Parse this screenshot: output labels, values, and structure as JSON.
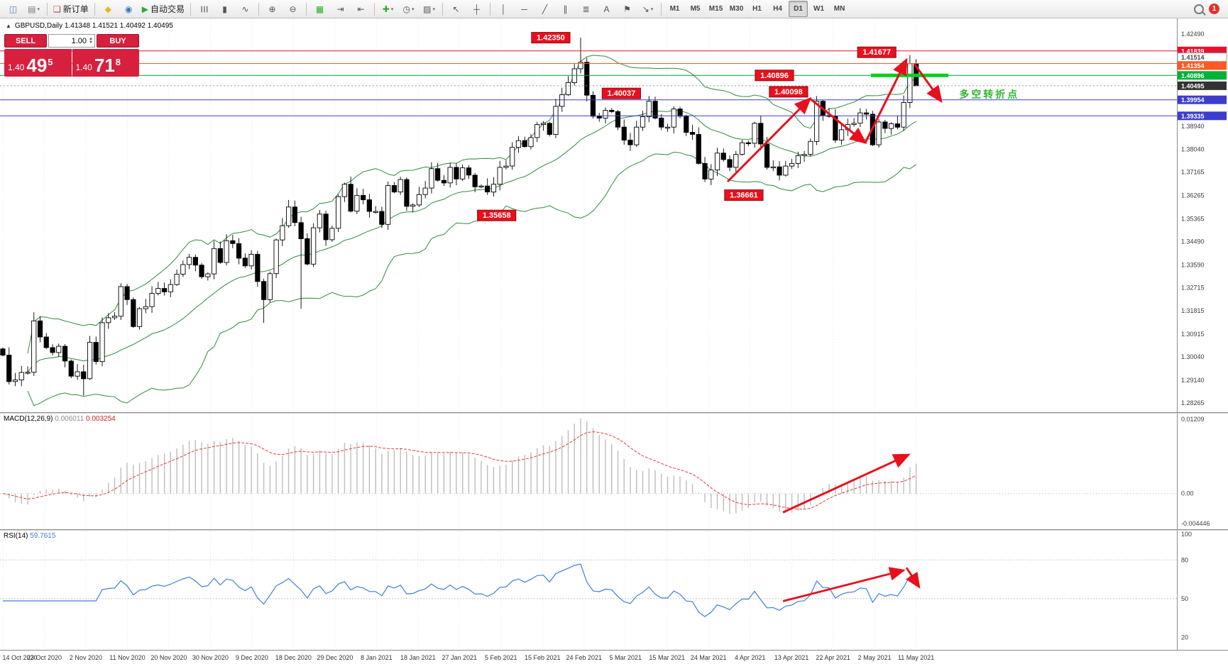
{
  "toolbar": {
    "notification_count": "1",
    "groups": [
      [
        {
          "name": "new-chart-button",
          "glyph": "◫",
          "color": "#4a7ebb"
        },
        {
          "name": "profiles-button",
          "glyph": "▤",
          "color": "#7a7a7a",
          "dd": true
        }
      ],
      [
        {
          "name": "new-order-button",
          "glyph": "❏",
          "color": "#c03b3b",
          "label": "新订单"
        }
      ],
      [
        {
          "name": "metaeditor-button",
          "glyph": "◆",
          "color": "#e8b41a"
        },
        {
          "name": "terminal-button",
          "glyph": "◉",
          "color": "#3a76c4"
        },
        {
          "name": "autotrading-button",
          "glyph": "▶",
          "color": "#2faa2f",
          "label": "自动交易"
        }
      ],
      [
        {
          "name": "bar-chart-button",
          "glyph": "☰",
          "rot": true
        },
        {
          "name": "candlestick-chart-button",
          "glyph": "▮"
        },
        {
          "name": "line-chart-button",
          "glyph": "∿"
        }
      ],
      [
        {
          "name": "zoom-in-button",
          "glyph": "⊕"
        },
        {
          "name": "zoom-out-button",
          "glyph": "⊖"
        }
      ],
      [
        {
          "name": "tile-windows-button",
          "glyph": "▦",
          "color": "#2faa2f"
        },
        {
          "name": "auto-scroll-button",
          "glyph": "⇥"
        },
        {
          "name": "chart-shift-button",
          "glyph": "⇤"
        }
      ],
      [
        {
          "name": "indicators-button",
          "glyph": "✚",
          "color": "#2faa2f",
          "dd": true
        },
        {
          "name": "periods-button",
          "glyph": "◷",
          "dd": true
        },
        {
          "name": "templates-button",
          "glyph": "▨",
          "dd": true
        }
      ],
      [
        {
          "name": "cursor-button",
          "glyph": "↖"
        },
        {
          "name": "crosshair-button",
          "glyph": "┼"
        }
      ],
      [
        {
          "name": "vertical-line-button",
          "glyph": "│"
        },
        {
          "name": "horizontal-line-button",
          "glyph": "─"
        },
        {
          "name": "trendline-button",
          "glyph": "╱"
        },
        {
          "name": "channel-button",
          "glyph": "∥"
        },
        {
          "name": "fibonacci-button",
          "glyph": "≣"
        },
        {
          "name": "text-button",
          "glyph": "A"
        },
        {
          "name": "label-flag-button",
          "glyph": "⚑"
        },
        {
          "name": "arrows-button",
          "glyph": "↘",
          "dd": true
        }
      ],
      [
        {
          "name": "tf-m1-button",
          "glyph": "M1",
          "tf": true
        },
        {
          "name": "tf-m5-button",
          "glyph": "M5",
          "tf": true
        },
        {
          "name": "tf-m15-button",
          "glyph": "M15",
          "tf": true
        },
        {
          "name": "tf-m30-button",
          "glyph": "M30",
          "tf": true
        },
        {
          "name": "tf-h1-button",
          "glyph": "H1",
          "tf": true
        },
        {
          "name": "tf-h4-button",
          "glyph": "H4",
          "tf": true
        },
        {
          "name": "tf-d1-button",
          "glyph": "D1",
          "tf": true,
          "active": true
        },
        {
          "name": "tf-w1-button",
          "glyph": "W1",
          "tf": true
        },
        {
          "name": "tf-mn-button",
          "glyph": "MN",
          "tf": true
        }
      ]
    ]
  },
  "chart": {
    "symbol_info": "GBPUSD,Daily  1.41348 1.41521 1.40492 1.40495",
    "one_click": {
      "sell_label": "SELL",
      "buy_label": "BUY",
      "volume": "1.00",
      "bid_prefix": "1.40",
      "bid_big": "49",
      "bid_sup": "5",
      "ask_prefix": "1.40",
      "ask_big": "71",
      "ask_sup": "8"
    }
  },
  "chart_data": {
    "type": "candlestick",
    "symbol": "GBPUSD",
    "period": "Daily",
    "y_range": [
      1.28265,
      1.4249
    ],
    "shift_frac": 0.776,
    "first_open": 1.3035,
    "closes": [
      1.3011,
      1.2909,
      1.2915,
      1.2944,
      1.2945,
      1.3143,
      1.3081,
      1.304,
      1.3021,
      1.3045,
      1.2988,
      1.293,
      1.2947,
      1.292,
      1.306,
      1.2986,
      1.3136,
      1.3155,
      1.3161,
      1.3275,
      1.3225,
      1.3121,
      1.319,
      1.3198,
      1.3249,
      1.3268,
      1.3255,
      1.3283,
      1.3323,
      1.336,
      1.3388,
      1.3358,
      1.3313,
      1.3324,
      1.3422,
      1.3368,
      1.3452,
      1.3441,
      1.3385,
      1.3355,
      1.34,
      1.3295,
      1.3225,
      1.3325,
      1.3455,
      1.351,
      1.3582,
      1.3522,
      1.346,
      1.3362,
      1.3502,
      1.3555,
      1.3456,
      1.35,
      1.3622,
      1.367,
      1.3566,
      1.3627,
      1.361,
      1.3565,
      1.3565,
      1.3515,
      1.3665,
      1.364,
      1.3688,
      1.3585,
      1.359,
      1.363,
      1.3655,
      1.373,
      1.3685,
      1.3675,
      1.3735,
      1.369,
      1.3733,
      1.3705,
      1.366,
      1.3663,
      1.364,
      1.367,
      1.3735,
      1.374,
      1.3812,
      1.3838,
      1.3815,
      1.385,
      1.39,
      1.3905,
      1.3862,
      1.397,
      1.4015,
      1.4062,
      1.4115,
      1.414,
      1.4013,
      1.3932,
      1.3925,
      1.3955,
      1.395,
      1.389,
      1.384,
      1.3822,
      1.389,
      1.393,
      1.399,
      1.3925,
      1.389,
      1.389,
      1.396,
      1.3932,
      1.387,
      1.3862,
      1.375,
      1.369,
      1.3725,
      1.379,
      1.3765,
      1.3735,
      1.3785,
      1.383,
      1.3828,
      1.3905,
      1.3825,
      1.3735,
      1.3737,
      1.3705,
      1.374,
      1.375,
      1.378,
      1.3785,
      1.3835,
      1.399,
      1.3935,
      1.3932,
      1.384,
      1.388,
      1.39,
      1.3905,
      1.3945,
      1.394,
      1.3822,
      1.391,
      1.3885,
      1.3903,
      1.389,
      1.3985,
      1.4135,
      1.40495
    ],
    "overrides": [
      {
        "i": 5,
        "h": 1.3176
      },
      {
        "i": 13,
        "l": 1.2855
      },
      {
        "i": 42,
        "l": 1.3135
      },
      {
        "i": 48,
        "l": 1.319
      },
      {
        "i": 93,
        "h": 1.4235
      },
      {
        "i": 114,
        "l": 1.36661
      },
      {
        "i": 131,
        "h": 1.40098
      },
      {
        "i": 146,
        "h": 1.41677
      },
      {
        "i": 147,
        "o": 1.41348,
        "h": 1.41521,
        "l": 1.40492
      }
    ],
    "hlines": [
      {
        "p": 1.41839,
        "color": "#e8112d",
        "w": 1
      },
      {
        "p": 1.41354,
        "color": "#ff5a26",
        "w": 1
      },
      {
        "p": 1.40896,
        "color": "#00a33a",
        "w": 1
      },
      {
        "p": 1.40495,
        "color": "#999999",
        "w": 1,
        "dash": "2,3"
      },
      {
        "p": 1.39954,
        "color": "#3c3ccd",
        "w": 1
      },
      {
        "p": 1.39335,
        "color": "#3c3ccd",
        "w": 1
      }
    ],
    "price_scale": {
      "ticks": [
        {
          "v": 1.4249,
          "t": "1.42490"
        },
        {
          "v": 1.3894,
          "t": "1.38940"
        },
        {
          "v": 1.3804,
          "t": "1.38040"
        },
        {
          "v": 1.37165,
          "t": "1.37165"
        },
        {
          "v": 1.36265,
          "t": "1.36265"
        },
        {
          "v": 1.35365,
          "t": "1.35365"
        },
        {
          "v": 1.3449,
          "t": "1.34490"
        },
        {
          "v": 1.3359,
          "t": "1.33590"
        },
        {
          "v": 1.32715,
          "t": "1.32715"
        },
        {
          "v": 1.31815,
          "t": "1.31815"
        },
        {
          "v": 1.30915,
          "t": "1.30915"
        },
        {
          "v": 1.3004,
          "t": "1.30040"
        },
        {
          "v": 1.2914,
          "t": "1.29140"
        },
        {
          "v": 1.28265,
          "t": "1.28265"
        }
      ],
      "badges": [
        {
          "v": 1.41839,
          "t": "1.41839",
          "bg": "#e8112d",
          "fg": "#ffffff"
        },
        {
          "v": 1.41514,
          "t": "1.41514",
          "bg": "#ffffff",
          "fg": "#444444",
          "br": "#999999",
          "dy": -3
        },
        {
          "v": 1.41354,
          "t": "1.41354",
          "bg": "#ff5a26",
          "fg": "#ffffff",
          "dy": 3
        },
        {
          "v": 1.40896,
          "t": "1.40896",
          "bg": "#00b23c",
          "fg": "#ffffff"
        },
        {
          "v": 1.40495,
          "t": "1.40495",
          "bg": "#333333",
          "fg": "#ffffff"
        },
        {
          "v": 1.39954,
          "t": "1.39954",
          "bg": "#3c3ccd",
          "fg": "#ffffff"
        },
        {
          "v": 1.39335,
          "t": "1.39335",
          "bg": "#3c3ccd",
          "fg": "#ffffff"
        }
      ]
    },
    "annotations": {
      "labels": [
        {
          "text": "1.42350",
          "xf": 0.468,
          "price": 1.4235,
          "dy": 0
        },
        {
          "text": "1.41677",
          "xf": 0.745,
          "price": 1.41677,
          "dy": -4
        },
        {
          "text": "1.40896",
          "xf": 0.658,
          "price": 1.40896,
          "dy": 0
        },
        {
          "text": "1.40037",
          "xf": 0.528,
          "price": 1.40037,
          "dy": -6
        },
        {
          "text": "1.40098",
          "xf": 0.67,
          "price": 1.40098,
          "dy": -6
        },
        {
          "text": "1.36661",
          "xf": 0.632,
          "price": 1.36661,
          "dy": 14
        },
        {
          "text": "1.35658",
          "xf": 0.422,
          "price": 1.35658,
          "dy": 6
        }
      ],
      "arrows_main": [
        {
          "x0f": 0.618,
          "p0": 1.368,
          "x1f": 0.688,
          "p1": 1.4
        },
        {
          "x0f": 0.688,
          "p0": 1.4,
          "x1f": 0.735,
          "p1": 1.383
        },
        {
          "x0f": 0.735,
          "p0": 1.383,
          "x1f": 0.77,
          "p1": 1.415
        },
        {
          "x0f": 0.777,
          "p0": 1.4135,
          "x1f": 0.8,
          "p1": 1.399
        }
      ],
      "segment": {
        "x0f": 0.74,
        "x1f": 0.806,
        "price": 1.40896,
        "color": "#00d01f"
      },
      "note": {
        "text": "多空转折点",
        "xf": 0.815,
        "price": 1.402
      },
      "arrow_macd": {
        "x0f": 0.665,
        "v0": -0.003,
        "x1f": 0.772,
        "v1": 0.0062
      },
      "arrows_rsi": [
        {
          "x0f": 0.665,
          "v0": 48,
          "x1f": 0.768,
          "v1": 72
        },
        {
          "x0f": 0.77,
          "v0": 74,
          "x1f": 0.781,
          "v1": 59
        }
      ]
    },
    "indicators": {
      "bollinger": "Bands(20,2)",
      "macd": {
        "label": "MACD(12,26,9)",
        "value_main": "0.006011",
        "value_signal": "0.003254",
        "scale_ticks": [
          "0.01209",
          "0.00",
          "-0.004446"
        ],
        "range": [
          -0.004446,
          0.01209
        ]
      },
      "rsi": {
        "label": "RSI(14)",
        "value": "59.7615",
        "scale_ticks": [
          {
            "v": 100,
            "t": "100"
          },
          {
            "v": 80,
            "t": "80"
          },
          {
            "v": 50,
            "t": "50"
          },
          {
            "v": 20,
            "t": "20"
          }
        ],
        "levels": [
          80,
          50
        ],
        "range": [
          13,
          100
        ]
      }
    },
    "time_axis": [
      "14 Oct 2020",
      "23 Oct 2020",
      "2 Nov 2020",
      "11 Nov 2020",
      "20 Nov 2020",
      "30 Nov 2020",
      "9 Dec 2020",
      "18 Dec 2020",
      "29 Dec 2020",
      "8 Jan 2021",
      "18 Jan 2021",
      "27 Jan 2021",
      "5 Feb 2021",
      "15 Feb 2021",
      "24 Feb 2021",
      "5 Mar 2021",
      "15 Mar 2021",
      "24 Mar 2021",
      "4 Apr 2021",
      "13 Apr 2021",
      "22 Apr 2021",
      "2 May 2021",
      "11 May 2021"
    ]
  }
}
